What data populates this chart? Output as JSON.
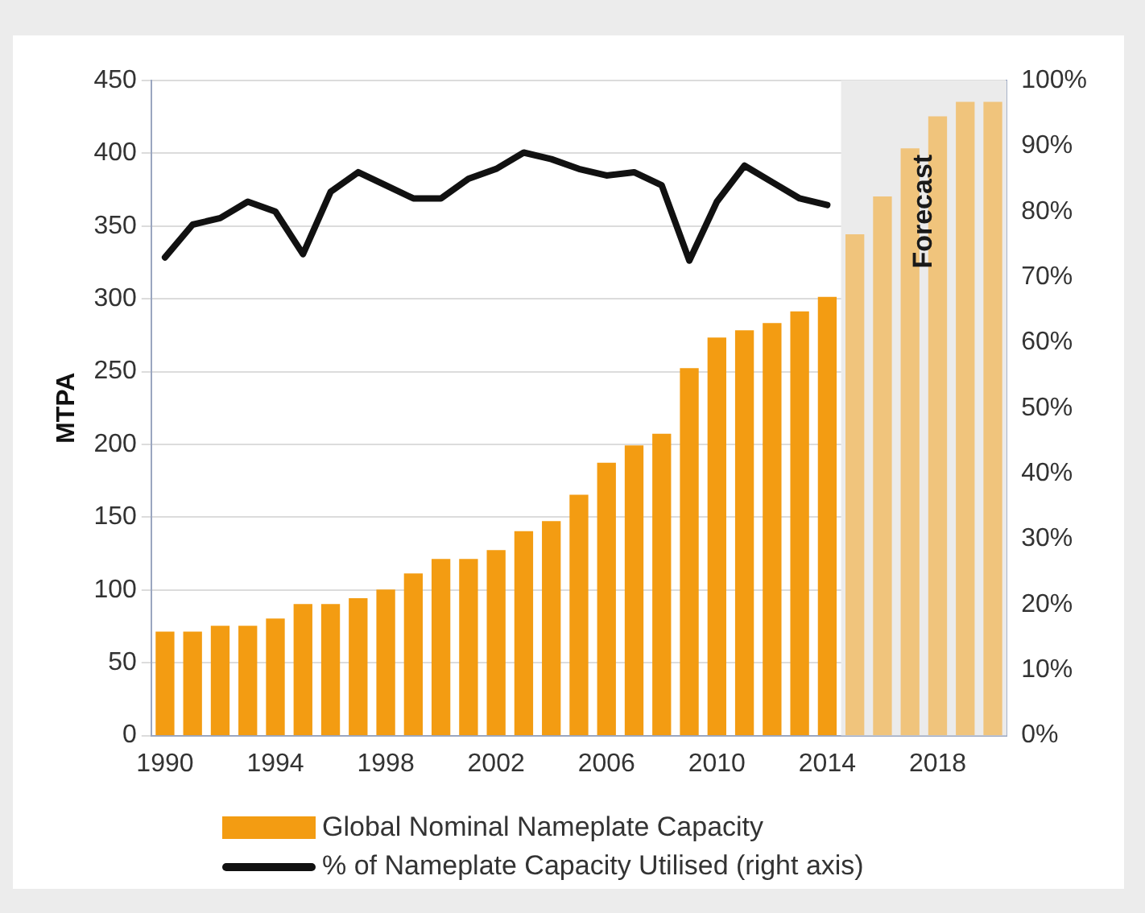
{
  "chart_data": {
    "type": "bar",
    "ylabel": "MTPA",
    "x": [
      1990,
      1991,
      1992,
      1993,
      1994,
      1995,
      1996,
      1997,
      1998,
      1999,
      2000,
      2001,
      2002,
      2003,
      2004,
      2005,
      2006,
      2007,
      2008,
      2009,
      2010,
      2011,
      2012,
      2013,
      2014,
      2015,
      2016,
      2017,
      2018,
      2019,
      2020
    ],
    "xlim": [
      1989.5,
      2020.5
    ],
    "xticks": [
      1990,
      1994,
      1998,
      2002,
      2006,
      2010,
      2014,
      2018
    ],
    "series": [
      {
        "name": "Global Nominal  Nameplate Capacity",
        "color": "#f39c12",
        "colors": [
          "#f39c12",
          "#f39c12",
          "#f39c12",
          "#f39c12",
          "#f39c12",
          "#f39c12",
          "#f39c12",
          "#f39c12",
          "#f39c12",
          "#f39c12",
          "#f39c12",
          "#f39c12",
          "#f39c12",
          "#f39c12",
          "#f39c12",
          "#f39c12",
          "#f39c12",
          "#f39c12",
          "#f39c12",
          "#f39c12",
          "#f39c12",
          "#f39c12",
          "#f39c12",
          "#f39c12",
          "#f39c12",
          "#f0c47c",
          "#f0c47c",
          "#f0c47c",
          "#f0c47c",
          "#f0c47c",
          "#f0c47c"
        ],
        "values": [
          71,
          71,
          75,
          75,
          80,
          90,
          90,
          94,
          100,
          111,
          121,
          121,
          127,
          140,
          147,
          165,
          187,
          199,
          207,
          252,
          273,
          278,
          283,
          291,
          301,
          344,
          370,
          403,
          425,
          435,
          435
        ]
      },
      {
        "name": "% of Nameplate Capacity Utilised (right axis)",
        "type": "line",
        "axis": "y2",
        "color": "#111111",
        "values": [
          73,
          78,
          79,
          81.5,
          80,
          73.5,
          83,
          86,
          84,
          82,
          82,
          85,
          86.5,
          89,
          88,
          86.5,
          85.5,
          86,
          84,
          72.5,
          81.5,
          87,
          84.5,
          82,
          81,
          null,
          null,
          null,
          null,
          null,
          null
        ]
      }
    ],
    "ylim": [
      0,
      450
    ],
    "yticks": [
      0,
      50,
      100,
      150,
      200,
      250,
      300,
      350,
      400,
      450
    ],
    "y2lim": [
      0,
      100
    ],
    "y2ticks": [
      {
        "value": 0,
        "label": "0%"
      },
      {
        "value": 10,
        "label": "10%"
      },
      {
        "value": 20,
        "label": "20%"
      },
      {
        "value": 30,
        "label": "30%"
      },
      {
        "value": 40,
        "label": "40%"
      },
      {
        "value": 50,
        "label": "50%"
      },
      {
        "value": 60,
        "label": "60%"
      },
      {
        "value": 70,
        "label": "70%"
      },
      {
        "value": 80,
        "label": "80%"
      },
      {
        "value": 90,
        "label": "90%"
      },
      {
        "value": 100,
        "label": "100%"
      }
    ],
    "bands": [
      {
        "axis": "x",
        "from": 2014.5,
        "to": 2020.5,
        "label": "Forecast",
        "color": "#ebebeb"
      }
    ],
    "grid": "y",
    "legend": "bottom",
    "marker": "none",
    "line_style": "solid"
  }
}
